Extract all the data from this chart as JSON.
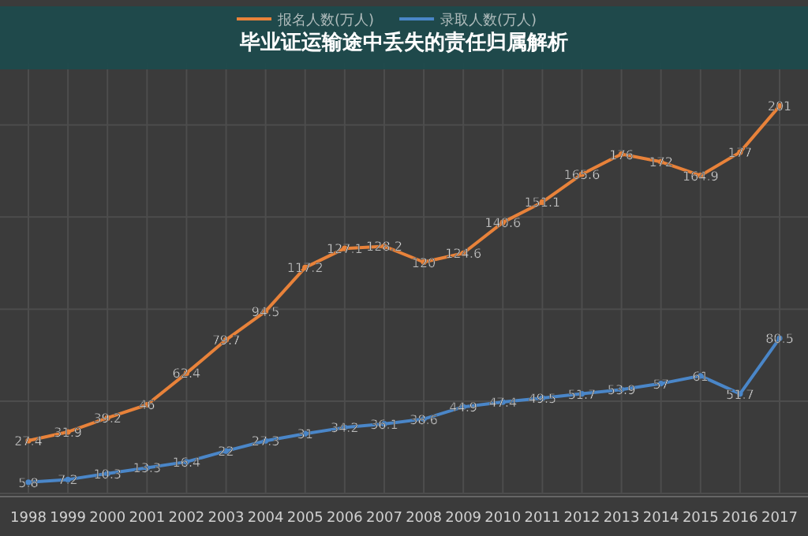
{
  "chart_data": {
    "type": "line",
    "title": "毕业证运输途中丢失的责任归属解析",
    "categories": [
      "1998",
      "1999",
      "2000",
      "2001",
      "2002",
      "2003",
      "2004",
      "2005",
      "2006",
      "2007",
      "2008",
      "2009",
      "2010",
      "2011",
      "2012",
      "2013",
      "2014",
      "2015",
      "2016",
      "2017"
    ],
    "series": [
      {
        "name": "报名人数(万人)",
        "color": "#e8823a",
        "values": [
          27.4,
          31.9,
          39.2,
          46,
          62.4,
          79.7,
          94.5,
          117.2,
          127.1,
          128.2,
          120,
          124.6,
          140.6,
          151.1,
          165.6,
          176,
          172,
          164.9,
          177,
          201
        ]
      },
      {
        "name": "录取人数(万人)",
        "color": "#4a86c8",
        "values": [
          5.8,
          7.2,
          10.3,
          13.3,
          16.4,
          22,
          27.3,
          31,
          34.2,
          36.1,
          38.6,
          44.9,
          47.4,
          49.5,
          51.7,
          53.9,
          57,
          61,
          51.7,
          80.5
        ]
      }
    ],
    "data_labels": true,
    "grid": true,
    "legend": "top",
    "marker": "circle"
  }
}
